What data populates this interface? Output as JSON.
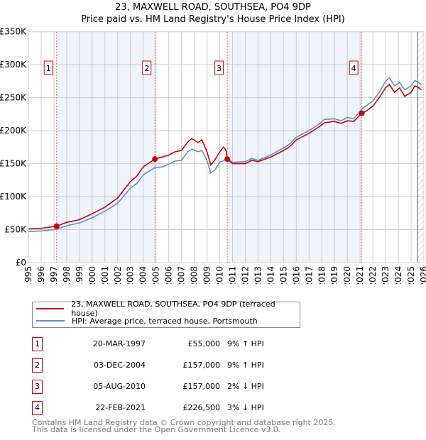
{
  "title": "23, MAXWELL ROAD, SOUTHSEA, PO4 9DP",
  "subtitle": "Price paid vs. HM Land Registry's House Price Index (HPI)",
  "chart_data": {
    "type": "line",
    "xlim": [
      1995,
      2026
    ],
    "ylim": [
      0,
      350000
    ],
    "yticks": [
      0,
      50000,
      100000,
      150000,
      200000,
      250000,
      300000,
      350000
    ],
    "ytick_labels": [
      "£0",
      "£50K",
      "£100K",
      "£150K",
      "£200K",
      "£250K",
      "£300K",
      "£350K"
    ],
    "xticks": [
      1995,
      1996,
      1997,
      1998,
      1999,
      2000,
      2001,
      2002,
      2003,
      2004,
      2005,
      2006,
      2007,
      2008,
      2009,
      2010,
      2011,
      2012,
      2013,
      2014,
      2015,
      2016,
      2017,
      2018,
      2019,
      2020,
      2021,
      2022,
      2023,
      2024,
      2025,
      2026
    ],
    "grid": true,
    "colors": {
      "property": "#cc0000",
      "hpi": "#5b8fd0",
      "band": "#eef3fc"
    },
    "series": [
      {
        "name": "23, MAXWELL ROAD, SOUTHSEA, PO4 9DP (terraced house)",
        "color": "#cc0000",
        "x": [
          1995,
          1996,
          1997.2,
          1998,
          1999,
          2000,
          2001,
          2002,
          2003,
          2003.5,
          2004,
          2004.92,
          2005.5,
          2006,
          2006.5,
          2007,
          2007.5,
          2007.8,
          2008.3,
          2008.6,
          2009,
          2009.3,
          2009.6,
          2010,
          2010.3,
          2010.5,
          2010.59,
          2011,
          2012,
          2012.5,
          2013,
          2014,
          2015,
          2015.5,
          2016,
          2017,
          2017.8,
          2018.2,
          2019,
          2019.5,
          2020,
          2020.5,
          2021.14,
          2021.5,
          2022,
          2022.5,
          2023,
          2023.3,
          2023.7,
          2024.1,
          2024.5,
          2025,
          2025.3,
          2025.6,
          2025.8
        ],
        "y": [
          51000,
          52000,
          55000,
          61000,
          65000,
          74000,
          84000,
          98000,
          123000,
          131000,
          145000,
          157000,
          160000,
          163000,
          168000,
          170000,
          183000,
          188000,
          182000,
          186000,
          168000,
          148000,
          155000,
          168000,
          175000,
          170000,
          157000,
          150000,
          150000,
          155000,
          153000,
          160000,
          170000,
          176000,
          186000,
          196000,
          206000,
          212000,
          214000,
          211000,
          215000,
          214000,
          226500,
          230000,
          237000,
          250000,
          265000,
          270000,
          258000,
          265000,
          252000,
          258000,
          268000,
          265000,
          262000
        ]
      },
      {
        "name": "HPI: Average price, terraced house, Portsmouth",
        "color": "#5b8fd0",
        "x": [
          1995,
          1996,
          1997.2,
          1998,
          1999,
          2000,
          2001,
          2002,
          2003,
          2003.5,
          2004,
          2004.92,
          2005.5,
          2006,
          2006.5,
          2007,
          2007.5,
          2007.8,
          2008.3,
          2008.6,
          2009,
          2009.3,
          2009.6,
          2010,
          2010.6,
          2011,
          2012,
          2012.5,
          2013,
          2014,
          2015,
          2015.5,
          2016,
          2017,
          2017.8,
          2018.2,
          2019,
          2019.5,
          2020,
          2020.5,
          2021.2,
          2021.5,
          2022,
          2022.5,
          2023,
          2023.3,
          2023.7,
          2024.1,
          2024.5,
          2025,
          2025.3,
          2025.6,
          2025.8
        ],
        "y": [
          47000,
          48000,
          50500,
          56000,
          60000,
          68000,
          78000,
          90000,
          113000,
          120000,
          133000,
          144000,
          145000,
          149000,
          154000,
          155000,
          168000,
          172000,
          168000,
          170000,
          155000,
          136000,
          140000,
          152000,
          157000,
          152000,
          153000,
          158000,
          155000,
          163000,
          174000,
          180000,
          190000,
          200000,
          210000,
          217000,
          218000,
          215000,
          220000,
          218000,
          234000,
          238000,
          245000,
          258000,
          275000,
          280000,
          268000,
          273000,
          262000,
          268000,
          276000,
          273000,
          270000
        ]
      }
    ],
    "sales": [
      {
        "n": "1",
        "x": 1997.21,
        "y": 55000
      },
      {
        "n": "2",
        "x": 2004.92,
        "y": 157000
      },
      {
        "n": "3",
        "x": 2010.59,
        "y": 157000
      },
      {
        "n": "4",
        "x": 2021.14,
        "y": 226500
      }
    ],
    "hatched_from": 2025.5
  },
  "legend": [
    {
      "label": "23, MAXWELL ROAD, SOUTHSEA, PO4 9DP (terraced house)"
    },
    {
      "label": "HPI: Average price, terraced house, Portsmouth"
    }
  ],
  "table": [
    {
      "n": "1",
      "date": "20-MAR-1997",
      "price": "£55,000",
      "hpi": "9% ↑ HPI"
    },
    {
      "n": "2",
      "date": "03-DEC-2004",
      "price": "£157,000",
      "hpi": "9% ↑ HPI"
    },
    {
      "n": "3",
      "date": "05-AUG-2010",
      "price": "£157,000",
      "hpi": "2% ↓ HPI"
    },
    {
      "n": "4",
      "date": "22-FEB-2021",
      "price": "£226,500",
      "hpi": "3% ↓ HPI"
    }
  ],
  "footer": [
    "Contains HM Land Registry data © Crown copyright and database right 2025.",
    "This data is licensed under the Open Government Licence v3.0."
  ]
}
